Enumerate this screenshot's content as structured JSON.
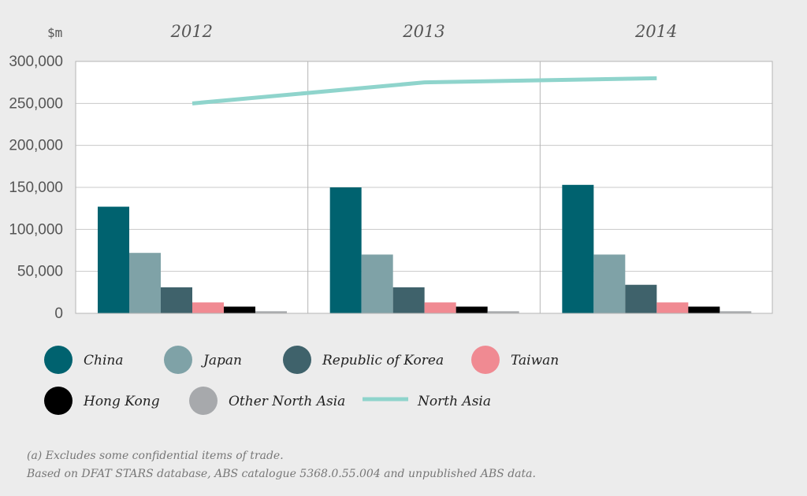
{
  "chart_data": {
    "type": "bar",
    "unit_label": "$m",
    "categories": [
      "2012",
      "2013",
      "2014"
    ],
    "series": [
      {
        "name": "China",
        "color": "#00626f",
        "values": [
          127000,
          150000,
          153000
        ]
      },
      {
        "name": "Japan",
        "color": "#7fa2a7",
        "values": [
          72000,
          70000,
          70000
        ]
      },
      {
        "name": "Republic of Korea",
        "color": "#3f626b",
        "values": [
          31000,
          31000,
          34000
        ]
      },
      {
        "name": "Taiwan",
        "color": "#f08a92",
        "values": [
          13000,
          13000,
          13000
        ]
      },
      {
        "name": "Hong Kong",
        "color": "#000000",
        "values": [
          8000,
          8000,
          8000
        ]
      },
      {
        "name": "Other North Asia",
        "color": "#a7a9ac",
        "values": [
          2500,
          2500,
          2500
        ]
      }
    ],
    "line_series": {
      "name": "North Asia",
      "color": "#8fd4cc",
      "values": [
        250000,
        275000,
        280000
      ]
    },
    "ylim": [
      0,
      300000
    ],
    "yticks": [
      "0",
      "50,000",
      "100,000",
      "150,000",
      "200,000",
      "250,000",
      "300,000"
    ],
    "ytick_values": [
      0,
      50000,
      100000,
      150000,
      200000,
      250000,
      300000
    ],
    "grid": true,
    "legend_position": "bottom"
  },
  "footnotes": {
    "line1": "(a) Excludes some confidential items of trade.",
    "line2": "Based on DFAT STARS database, ABS catalogue 5368.0.55.004 and unpublished ABS data."
  }
}
